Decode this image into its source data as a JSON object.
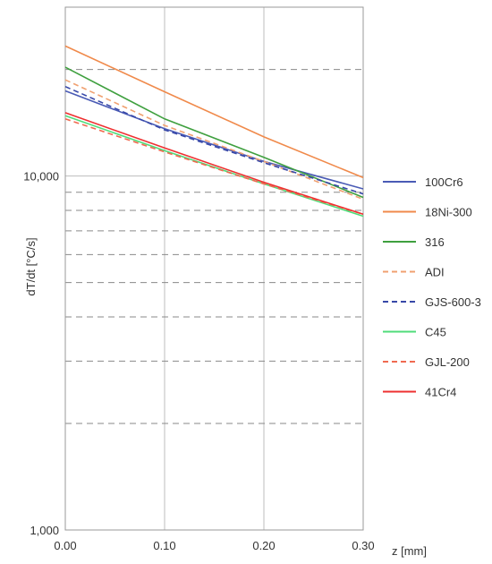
{
  "chart_data": {
    "type": "line",
    "title": "",
    "xlabel": "z [mm]",
    "ylabel": "dT/dt [°C/s]",
    "xlim": [
      0.0,
      0.3
    ],
    "ylim": [
      1000,
      30000
    ],
    "y_scale": "log",
    "x_ticks": [
      "0.00",
      "0.10",
      "0.20",
      "0.30"
    ],
    "y_tick_labels": [
      "1,000",
      "10,000"
    ],
    "minor_gridlines_y": [
      2000,
      3000,
      4000,
      5000,
      6000,
      7000,
      8000,
      9000,
      20000
    ],
    "grid": true,
    "legend_position": "right",
    "series": [
      {
        "name": "100Cr6",
        "color": "#4a5bb5",
        "dash": "solid",
        "x": [
          0.0,
          0.1,
          0.2,
          0.3
        ],
        "y": [
          17400,
          13600,
          11000,
          9200
        ]
      },
      {
        "name": "18Ni-300",
        "color": "#f08a4b",
        "dash": "solid",
        "x": [
          0.0,
          0.1,
          0.2,
          0.3
        ],
        "y": [
          23300,
          17300,
          12900,
          9900
        ]
      },
      {
        "name": "316",
        "color": "#3fa03f",
        "dash": "solid",
        "x": [
          0.0,
          0.1,
          0.2,
          0.3
        ],
        "y": [
          20300,
          14500,
          11300,
          8700
        ]
      },
      {
        "name": "ADI",
        "color": "#f0a070",
        "dash": "dashed",
        "x": [
          0.0,
          0.1,
          0.2,
          0.3
        ],
        "y": [
          18700,
          13900,
          11000,
          8600
        ]
      },
      {
        "name": "GJS-600-3",
        "color": "#3848a8",
        "dash": "dashed",
        "x": [
          0.0,
          0.1,
          0.2,
          0.3
        ],
        "y": [
          17900,
          13500,
          10900,
          8900
        ]
      },
      {
        "name": "C45",
        "color": "#4fdc7a",
        "dash": "solid",
        "x": [
          0.0,
          0.1,
          0.2,
          0.3
        ],
        "y": [
          14800,
          11800,
          9500,
          7700
        ]
      },
      {
        "name": "GJL-200",
        "color": "#f06a50",
        "dash": "dashed",
        "x": [
          0.0,
          0.1,
          0.2,
          0.3
        ],
        "y": [
          14500,
          11700,
          9500,
          7800
        ]
      },
      {
        "name": "41Cr4",
        "color": "#ee3030",
        "dash": "solid",
        "x": [
          0.0,
          0.1,
          0.2,
          0.3
        ],
        "y": [
          15100,
          12000,
          9600,
          7800
        ]
      }
    ]
  }
}
